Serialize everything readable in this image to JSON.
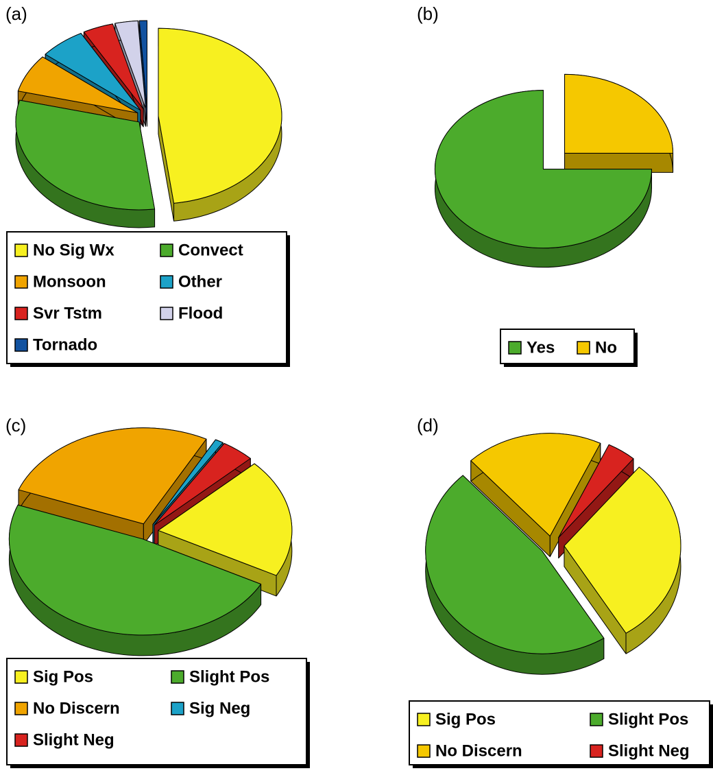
{
  "chart_data": [
    {
      "type": "pie",
      "label": "(a)",
      "categories": [
        "No Sig Wx",
        "Convect",
        "Monsoon",
        "Other",
        "Svr Tstm",
        "Flood",
        "Tornado"
      ],
      "values": [
        48,
        31,
        7,
        6,
        4,
        3,
        1
      ],
      "colors": [
        "#f7f020",
        "#4cab2c",
        "#f0a400",
        "#1ca2c8",
        "#d8231f",
        "#d2d2ea",
        "#1252a0"
      ]
    },
    {
      "type": "pie",
      "label": "(b)",
      "categories": [
        "Yes",
        "No"
      ],
      "values": [
        75,
        25
      ],
      "colors": [
        "#4cab2c",
        "#f5c800"
      ]
    },
    {
      "type": "pie",
      "label": "(c)",
      "categories": [
        "Sig Pos",
        "Slight Pos",
        "No Discern",
        "Sig Neg",
        "Slight Neg"
      ],
      "values": [
        20,
        48,
        27,
        1,
        4
      ],
      "colors": [
        "#f7f020",
        "#4cab2c",
        "#f0a400",
        "#1ca2c8",
        "#d8231f"
      ]
    },
    {
      "type": "pie",
      "label": "(d)",
      "categories": [
        "Sig Pos",
        "Slight Pos",
        "No Discern",
        "Slight Neg"
      ],
      "values": [
        30,
        47,
        19,
        4
      ],
      "colors": [
        "#f7f020",
        "#4cab2c",
        "#f5c800",
        "#d8231f"
      ]
    }
  ]
}
